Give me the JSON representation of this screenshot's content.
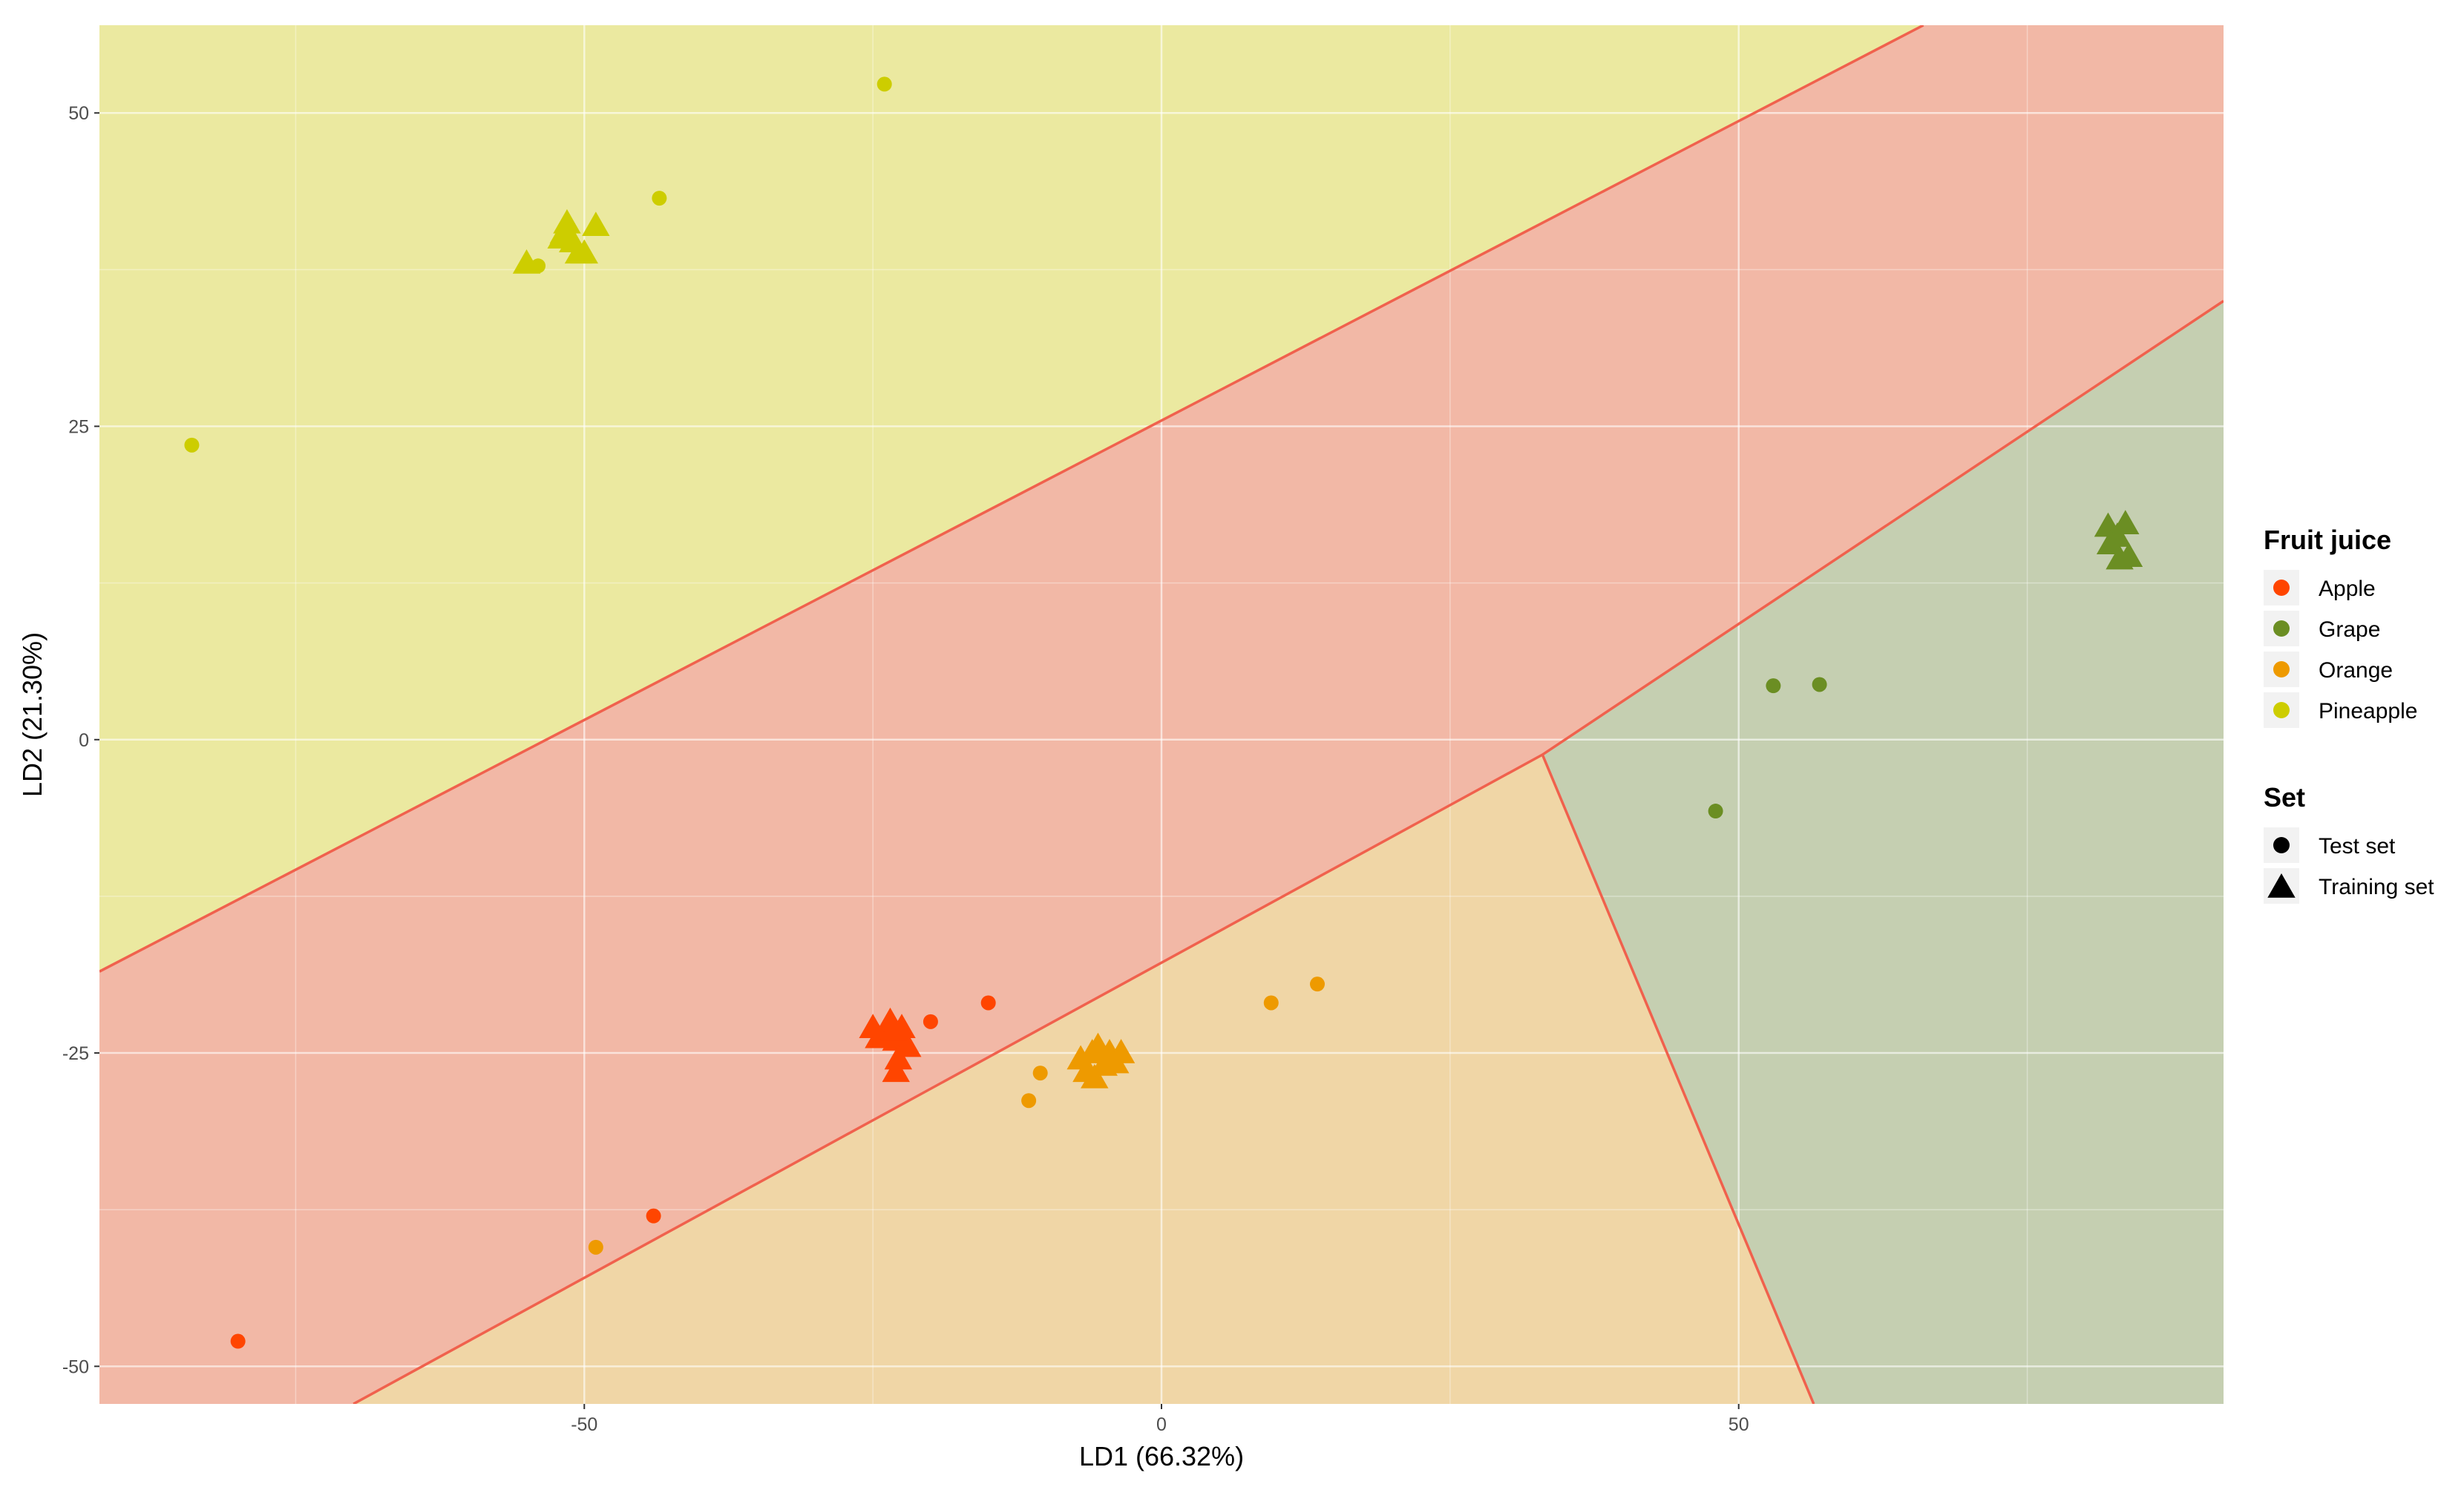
{
  "chart_data": {
    "type": "scatter",
    "title": "",
    "xlabel": "LD1 (66.32%)",
    "ylabel": "LD2 (21.30%)",
    "xlim": [
      -92,
      92
    ],
    "ylim": [
      -53,
      57
    ],
    "x_ticks": [
      -50,
      0,
      50
    ],
    "y_ticks": [
      -50,
      -25,
      0,
      25,
      50
    ],
    "tick_labels_x": [
      "-50",
      "0",
      "50"
    ],
    "tick_labels_y": [
      "-50",
      "-25",
      "0",
      "25",
      "50"
    ],
    "grid": true,
    "legend_position": "right",
    "colors": {
      "Apple": "#ff4500",
      "Grape": "#6b8e23",
      "Orange": "#ee9a00",
      "Pineapple": "#cdcd00",
      "region_pineapple": "#ebe9a0",
      "region_apple": "#f2b8a6",
      "region_orange": "#f0d6a6",
      "region_grape": "#c5cfb1",
      "boundary": "#f0614d"
    },
    "regions": [
      {
        "class": "Pineapple",
        "polygon": [
          [
            -92,
            -18.5
          ],
          [
            -92,
            57
          ],
          [
            66,
            57
          ]
        ]
      },
      {
        "class": "Apple",
        "polygon": [
          [
            -92,
            -18.5
          ],
          [
            66,
            57
          ],
          [
            92,
            57
          ],
          [
            92,
            35
          ],
          [
            33,
            -1.2
          ],
          [
            -70,
            -53
          ],
          [
            -92,
            -53
          ]
        ]
      },
      {
        "class": "Orange",
        "polygon": [
          [
            -70,
            -53
          ],
          [
            33,
            -1.2
          ],
          [
            56.5,
            -53
          ]
        ]
      },
      {
        "class": "Grape",
        "polygon": [
          [
            33,
            -1.2
          ],
          [
            92,
            35
          ],
          [
            92,
            -53
          ],
          [
            56.5,
            -53
          ]
        ]
      }
    ],
    "boundaries": [
      [
        [
          -92,
          -18.5
        ],
        [
          66,
          57
        ]
      ],
      [
        [
          -70,
          -53
        ],
        [
          33,
          -1.2
        ],
        [
          92,
          35
        ]
      ],
      [
        [
          33,
          -1.2
        ],
        [
          56.5,
          -53
        ]
      ]
    ],
    "series": [
      {
        "name": "Apple",
        "set": "Test set",
        "x": [
          -80,
          -44,
          -20,
          -15
        ],
        "y": [
          -48,
          -38,
          -22.5,
          -21
        ]
      },
      {
        "name": "Apple",
        "set": "Training set",
        "x": [
          -25,
          -24,
          -23.5,
          -23,
          -22.5,
          -22,
          -24.5,
          -23.2,
          -22.8,
          -23
        ],
        "y": [
          -23,
          -23.5,
          -22.5,
          -24,
          -23,
          -24.5,
          -23.8,
          -23.2,
          -25.5,
          -26.5
        ]
      },
      {
        "name": "Grape",
        "set": "Test set",
        "x": [
          48,
          53,
          57
        ],
        "y": [
          -5.7,
          4.3,
          4.4
        ]
      },
      {
        "name": "Grape",
        "set": "Training set",
        "x": [
          82,
          82.8,
          83.5,
          82.2,
          83,
          83.8
        ],
        "y": [
          17,
          16.2,
          17.2,
          15.6,
          14.4,
          14.6
        ]
      },
      {
        "name": "Orange",
        "set": "Test set",
        "x": [
          -49,
          -11.5,
          -10.5,
          9.5,
          13.5
        ],
        "y": [
          -40.5,
          -28.8,
          -26.6,
          -21,
          -19.5
        ]
      },
      {
        "name": "Orange",
        "set": "Training set",
        "x": [
          -7,
          -6,
          -5.5,
          -5,
          -4.5,
          -4,
          -3.5,
          -6.5,
          -5.8
        ],
        "y": [
          -25.5,
          -25,
          -24.5,
          -26,
          -25,
          -25.8,
          -25,
          -26.5,
          -27
        ]
      },
      {
        "name": "Pineapple",
        "set": "Test set",
        "x": [
          -84,
          -54,
          -43.5,
          -24
        ],
        "y": [
          23.5,
          37.8,
          43.2,
          52.3
        ]
      },
      {
        "name": "Pineapple",
        "set": "Training set",
        "x": [
          -55,
          -52,
          -51.5,
          -51,
          -50.5,
          -50,
          -49,
          -51.8
        ],
        "y": [
          38,
          40,
          41.2,
          39.7,
          38.8,
          38.8,
          41,
          40.4
        ]
      }
    ],
    "legend": {
      "color_title": "Fruit juice",
      "color_entries": [
        "Apple",
        "Grape",
        "Orange",
        "Pineapple"
      ],
      "shape_title": "Set",
      "shape_entries": [
        "Test set",
        "Training set"
      ]
    }
  }
}
